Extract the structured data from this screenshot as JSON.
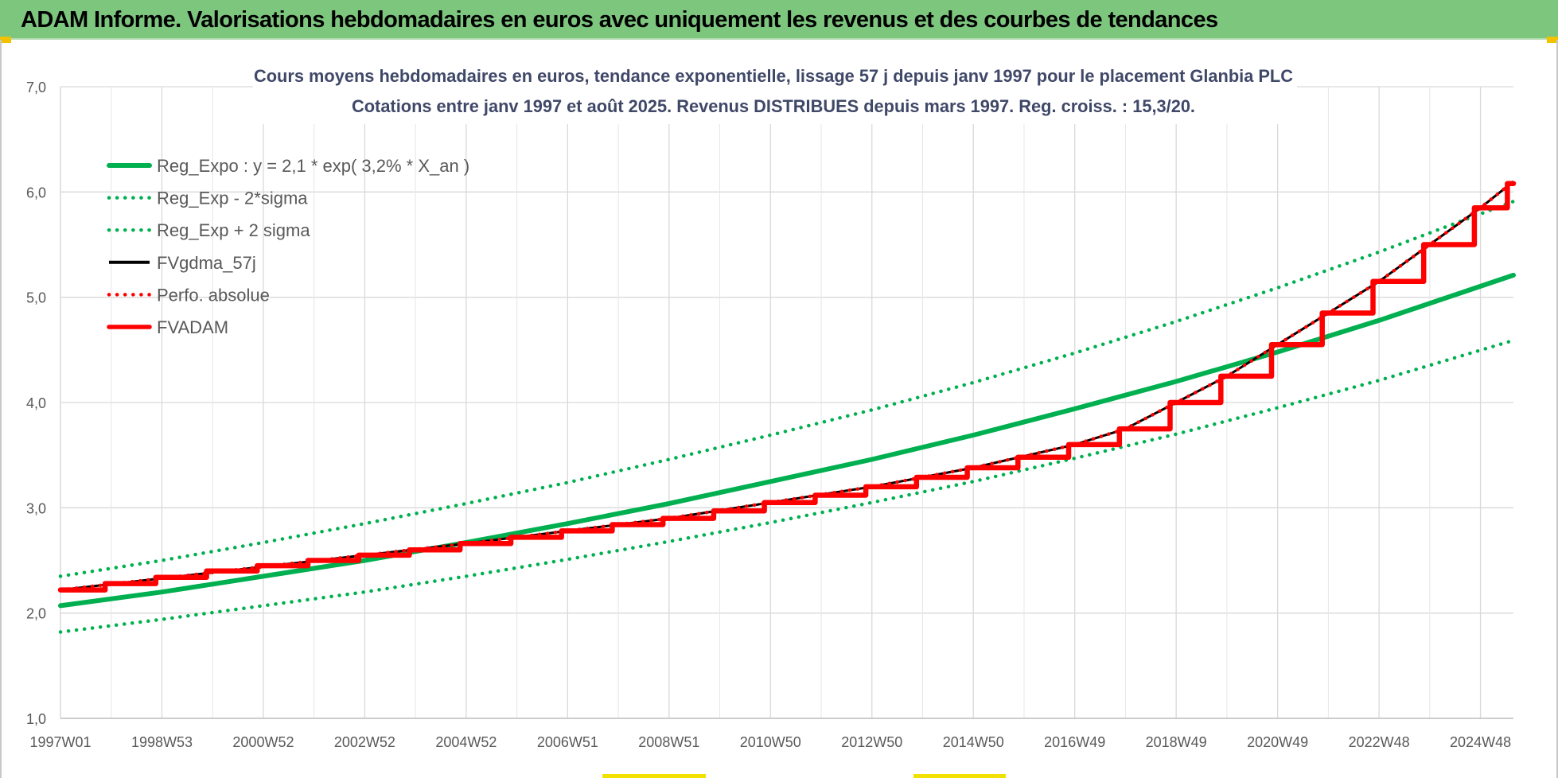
{
  "banner": {
    "title": "ADAM Informe. Valorisations hebdomadaires en euros avec uniquement les revenus et des courbes de tendances"
  },
  "colors": {
    "banner_bg": "#7dc67e",
    "reg_green": "#00b050",
    "fvgdma_black": "#000000",
    "red": "#ff0000"
  },
  "chart_data": {
    "type": "line",
    "title_line1": "Cours moyens hebdomadaires en euros, tendance exponentielle, lissage 57 j depuis janv 1997 pour le placement Glanbia PLC",
    "title_line2": "Cotations entre janv 1997 et août 2025.  Revenus DISTRIBUES depuis mars 1997. Reg. croiss. : 15,3/20.",
    "xlabel": "",
    "ylabel": "",
    "x_range": [
      1997.0,
      2025.65
    ],
    "ylim": [
      1.0,
      7.0
    ],
    "grid": true,
    "legend_position": "top-left",
    "y_ticks": [
      "1,0",
      "2,0",
      "3,0",
      "4,0",
      "5,0",
      "6,0",
      "7,0"
    ],
    "x_ticks": [
      {
        "label": "1997W01",
        "x": 1997.0
      },
      {
        "label": "1998W53",
        "x": 1999.0
      },
      {
        "label": "2000W52",
        "x": 2001.0
      },
      {
        "label": "2002W52",
        "x": 2003.0
      },
      {
        "label": "2004W52",
        "x": 2005.0
      },
      {
        "label": "2006W51",
        "x": 2007.0
      },
      {
        "label": "2008W51",
        "x": 2009.0
      },
      {
        "label": "2010W50",
        "x": 2011.0
      },
      {
        "label": "2012W50",
        "x": 2013.0
      },
      {
        "label": "2014W50",
        "x": 2015.0
      },
      {
        "label": "2016W49",
        "x": 2017.0
      },
      {
        "label": "2018W49",
        "x": 2019.0
      },
      {
        "label": "2020W49",
        "x": 2021.0
      },
      {
        "label": "2022W48",
        "x": 2023.0
      },
      {
        "label": "2024W48",
        "x": 2025.0
      }
    ],
    "series": [
      {
        "name": "Reg_Expo : y = 2,1 * exp( 3,2% *  X_an )",
        "style": "solid",
        "color": "#00b050",
        "x": [
          1997.0,
          1999.0,
          2001.0,
          2003.0,
          2005.0,
          2007.0,
          2009.0,
          2011.0,
          2013.0,
          2015.0,
          2017.0,
          2019.0,
          2021.0,
          2023.0,
          2025.65
        ],
        "y": [
          2.07,
          2.2,
          2.35,
          2.5,
          2.67,
          2.85,
          3.04,
          3.25,
          3.46,
          3.69,
          3.94,
          4.2,
          4.48,
          4.78,
          5.21
        ]
      },
      {
        "name": "Reg_Exp - 2*sigma",
        "style": "dotted",
        "color": "#00b050",
        "x": [
          1997.0,
          1999.0,
          2001.0,
          2003.0,
          2005.0,
          2007.0,
          2009.0,
          2011.0,
          2013.0,
          2015.0,
          2017.0,
          2019.0,
          2021.0,
          2023.0,
          2025.65
        ],
        "y": [
          1.82,
          1.94,
          2.07,
          2.2,
          2.35,
          2.51,
          2.68,
          2.86,
          3.05,
          3.25,
          3.47,
          3.7,
          3.95,
          4.21,
          4.59
        ]
      },
      {
        "name": "Reg_Exp + 2 sigma",
        "style": "dotted",
        "color": "#00b050",
        "x": [
          1997.0,
          1999.0,
          2001.0,
          2003.0,
          2005.0,
          2007.0,
          2009.0,
          2011.0,
          2013.0,
          2015.0,
          2017.0,
          2019.0,
          2021.0,
          2023.0,
          2025.65
        ],
        "y": [
          2.35,
          2.5,
          2.67,
          2.85,
          3.04,
          3.24,
          3.46,
          3.69,
          3.93,
          4.19,
          4.47,
          4.77,
          5.09,
          5.43,
          5.91
        ]
      },
      {
        "name": "FVgdma_57j",
        "style": "solid-thin",
        "color": "#000000",
        "x": [
          1997.0,
          1999.0,
          2001.0,
          2003.0,
          2005.0,
          2007.0,
          2009.0,
          2011.0,
          2013.0,
          2015.0,
          2017.0,
          2018.0,
          2019.0,
          2020.0,
          2021.0,
          2022.0,
          2023.0,
          2024.0,
          2025.0,
          2025.65
        ],
        "y": [
          2.22,
          2.33,
          2.44,
          2.55,
          2.66,
          2.78,
          2.9,
          3.05,
          3.2,
          3.38,
          3.6,
          3.75,
          4.0,
          4.25,
          4.55,
          4.85,
          5.15,
          5.5,
          5.85,
          6.1
        ]
      },
      {
        "name": "Perfo. absolue",
        "style": "dotted",
        "color": "#ff0000",
        "x": [
          1997.0,
          1999.0,
          2001.0,
          2003.0,
          2005.0,
          2007.0,
          2009.0,
          2011.0,
          2013.0,
          2015.0,
          2017.0,
          2018.0,
          2019.0,
          2020.0,
          2021.0,
          2022.0,
          2023.0,
          2024.0,
          2025.0,
          2025.65
        ],
        "y": [
          2.22,
          2.33,
          2.44,
          2.55,
          2.66,
          2.78,
          2.9,
          3.05,
          3.2,
          3.38,
          3.6,
          3.75,
          4.0,
          4.25,
          4.55,
          4.85,
          5.15,
          5.5,
          5.85,
          6.1
        ]
      },
      {
        "name": "FVADAM",
        "style": "step",
        "color": "#ff0000",
        "x": [
          1997.0,
          1998.0,
          1999.0,
          2000.0,
          2001.0,
          2002.0,
          2003.0,
          2004.0,
          2005.0,
          2006.0,
          2007.0,
          2008.0,
          2009.0,
          2010.0,
          2011.0,
          2012.0,
          2013.0,
          2014.0,
          2015.0,
          2016.0,
          2017.0,
          2018.0,
          2019.0,
          2020.0,
          2021.0,
          2022.0,
          2023.0,
          2024.0,
          2025.0,
          2025.65
        ],
        "y": [
          2.22,
          2.28,
          2.34,
          2.4,
          2.45,
          2.5,
          2.55,
          2.6,
          2.66,
          2.72,
          2.78,
          2.84,
          2.9,
          2.97,
          3.05,
          3.12,
          3.2,
          3.29,
          3.38,
          3.48,
          3.6,
          3.75,
          4.0,
          4.25,
          4.55,
          4.85,
          5.15,
          5.5,
          5.85,
          6.08
        ]
      }
    ]
  }
}
